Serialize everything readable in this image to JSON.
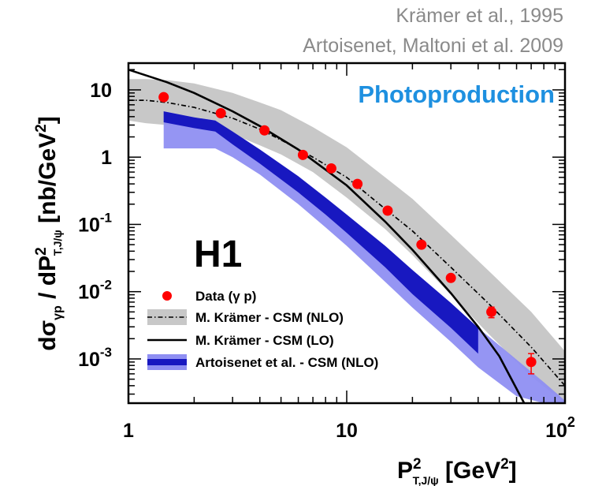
{
  "references": [
    "Krämer et al., 1995",
    "Artoisenet, Maltoni et al. 2009"
  ],
  "experiment_label": "H1",
  "process_label": "Photoproduction",
  "colors": {
    "process_label": "#1e90e0",
    "data": "#ff0000",
    "kramer_nlo_band": "#c8c8c8",
    "artoisenet_band_fill": "#8f8ff2",
    "artoisenet_band_edge": "#1818c0",
    "curves": "#000000"
  },
  "chart_data": {
    "type": "scatter",
    "xlabel": "P_T,J/ψ^2 [GeV^2]",
    "ylabel": "dσ_γp / dP_T,J/ψ^2 [nb/GeV^2]",
    "xscale": "log",
    "yscale": "log",
    "xlim": [
      1,
      100
    ],
    "ylim": [
      0.00022,
      25
    ],
    "x_tick_labels": [
      {
        "value": 1,
        "base": "1",
        "exp": ""
      },
      {
        "value": 10,
        "base": "10",
        "exp": ""
      },
      {
        "value": 100,
        "base": "10",
        "exp": "2"
      }
    ],
    "y_tick_labels": [
      {
        "value": 10,
        "base": "10",
        "exp": ""
      },
      {
        "value": 1,
        "base": "1",
        "exp": ""
      },
      {
        "value": 0.1,
        "base": "10",
        "exp": "-1"
      },
      {
        "value": 0.01,
        "base": "10",
        "exp": "-2"
      },
      {
        "value": 0.001,
        "base": "10",
        "exp": "-3"
      }
    ],
    "legend_position": "bottom-left",
    "legend": [
      {
        "key": "data",
        "label": "Data (γ p)"
      },
      {
        "key": "kramer_nlo",
        "label": "M. Krämer - CSM (NLO)"
      },
      {
        "key": "kramer_lo",
        "label": "M. Krämer - CSM (LO)"
      },
      {
        "key": "artoisenet_nlo",
        "label": "Artoisenet et al. - CSM (NLO)"
      }
    ],
    "series": [
      {
        "key": "data",
        "kind": "points",
        "x": [
          1.45,
          2.65,
          4.2,
          6.3,
          8.5,
          11.2,
          15.4,
          22,
          30,
          46,
          70
        ],
        "y": [
          7.8,
          4.5,
          2.5,
          1.08,
          0.68,
          0.4,
          0.16,
          0.05,
          0.016,
          0.005,
          0.0009
        ],
        "y_err": [
          0,
          0,
          0,
          0,
          0,
          0,
          0,
          0.003,
          0.0018,
          0.0009,
          0.0003
        ]
      },
      {
        "key": "kramer_nlo",
        "kind": "band_with_center",
        "x": [
          1,
          1.2,
          1.5,
          2,
          3,
          4,
          5,
          7,
          10,
          15,
          20,
          30,
          45,
          70,
          100
        ],
        "center": [
          7,
          7,
          6.5,
          5.5,
          3.8,
          2.6,
          1.8,
          1,
          0.5,
          0.17,
          0.08,
          0.023,
          0.0065,
          0.0015,
          0.0004
        ],
        "upper": [
          14.5,
          14.5,
          14,
          12.5,
          9,
          6.5,
          5,
          2.8,
          1.4,
          0.5,
          0.24,
          0.07,
          0.02,
          0.005,
          0.0013
        ],
        "lower": [
          3.5,
          3.2,
          3,
          2.8,
          2.2,
          1.5,
          1.1,
          0.6,
          0.25,
          0.085,
          0.035,
          0.009,
          0.0023,
          0.00055,
          0.00022
        ]
      },
      {
        "key": "kramer_lo",
        "kind": "line",
        "x": [
          1,
          1.5,
          2,
          3,
          4,
          6,
          8,
          10,
          15,
          20,
          30,
          40,
          50,
          65
        ],
        "y": [
          20,
          13,
          9,
          4.8,
          2.9,
          1.3,
          0.65,
          0.38,
          0.11,
          0.042,
          0.0095,
          0.003,
          0.0011,
          0.00022
        ]
      },
      {
        "key": "artoisenet_nlo",
        "kind": "band",
        "x": [
          1.45,
          2,
          2.5,
          3,
          4,
          6,
          8,
          10,
          15,
          20,
          30,
          40,
          60,
          80,
          100
        ],
        "upper": [
          4.8,
          3.9,
          3.5,
          2.4,
          1.3,
          0.52,
          0.25,
          0.14,
          0.048,
          0.021,
          0.0068,
          0.0029,
          0.00098,
          0.00045,
          0.00024
        ],
        "lower": [
          1.35,
          1.35,
          1.35,
          1.0,
          0.55,
          0.2,
          0.09,
          0.048,
          0.014,
          0.0058,
          0.0018,
          0.00075,
          0.00028,
          0.00022,
          0.00022
        ],
        "edge_upper": [
          4.8,
          3.9,
          3.5,
          2.4,
          1.3,
          0.52,
          0.25,
          0.14,
          0.048,
          0.021,
          0.0068,
          0.0029
        ],
        "edge_lower": [
          3.3,
          2.7,
          2.4,
          1.55,
          0.8,
          0.3,
          0.14,
          0.075,
          0.023,
          0.0092,
          0.0029,
          0.0012
        ]
      }
    ]
  }
}
